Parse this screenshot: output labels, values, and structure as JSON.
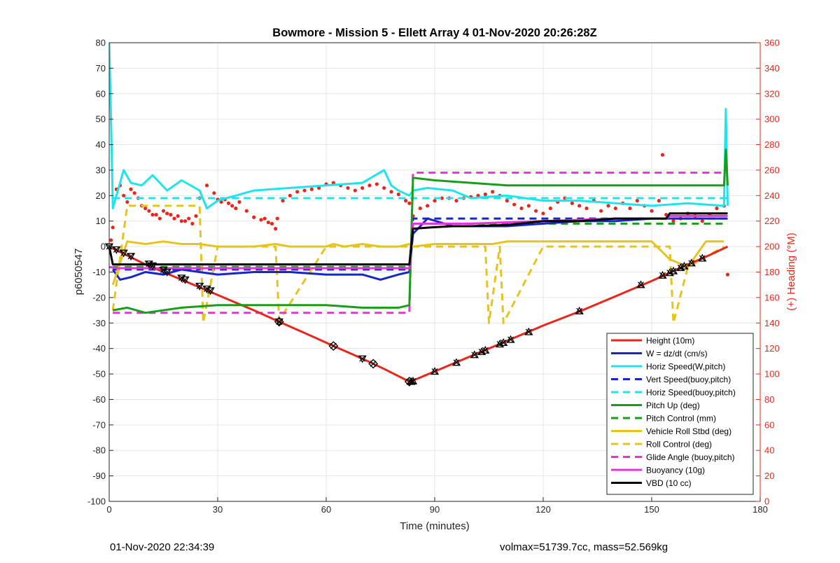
{
  "chart_data": {
    "type": "line",
    "title": "Bowmore - Mission 5 - Ellett Array 4 01-Nov-2020 20:26:28Z",
    "xlabel": "Time (minutes)",
    "ylabel": "p6050547",
    "y2label": "(+) Heading (°M)",
    "xlim": [
      0,
      180
    ],
    "ylim": [
      -100,
      80
    ],
    "y2lim": [
      0,
      360
    ],
    "xticks": [
      0,
      30,
      60,
      90,
      120,
      150,
      180
    ],
    "yticks": [
      80,
      70,
      60,
      50,
      40,
      30,
      20,
      10,
      0,
      -10,
      -20,
      -30,
      -40,
      -50,
      -60,
      -70,
      -80,
      -90,
      -100
    ],
    "y2ticks": [
      360,
      340,
      320,
      300,
      280,
      260,
      240,
      220,
      200,
      180,
      160,
      140,
      120,
      100,
      80,
      60,
      40,
      20,
      0
    ],
    "grid": true,
    "legend_position": "bottom-right",
    "series": [
      {
        "name": "Height (10m)",
        "color": "#e8261c",
        "style": "solid",
        "x": [
          0,
          10,
          20,
          30,
          40,
          47,
          55,
          62,
          70,
          76,
          83,
          85,
          90,
          100,
          110,
          120,
          130,
          140,
          150,
          160,
          165,
          171
        ],
        "y": [
          0,
          -7,
          -13,
          -19,
          -25,
          -29.5,
          -34.5,
          -39,
          -44,
          -48,
          -53,
          -52,
          -49,
          -43,
          -37,
          -31,
          -25.5,
          -19.5,
          -13.5,
          -7,
          -4,
          0
        ]
      },
      {
        "name": "W = dz/dt (cm/s)",
        "color": "#1726c8",
        "style": "solid",
        "x": [
          1,
          3,
          6,
          10,
          15,
          20,
          30,
          40,
          50,
          60,
          70,
          75,
          80,
          83,
          84,
          88,
          95,
          100,
          110,
          120,
          130,
          140,
          150,
          160,
          171
        ],
        "y": [
          -9,
          -13,
          -12,
          -10,
          -11,
          -9,
          -11,
          -10,
          -10,
          -11,
          -11,
          -13,
          -11,
          -10,
          5,
          11,
          8,
          8,
          8,
          9,
          10,
          10,
          11,
          11,
          11
        ]
      },
      {
        "name": "Horiz Speed(W,pitch)",
        "color": "#1ee4ec",
        "style": "solid",
        "x": [
          0,
          0.5,
          1,
          2,
          4,
          6,
          9,
          12,
          16,
          20,
          25,
          27,
          30,
          40,
          50,
          60,
          70,
          76,
          78,
          80,
          83,
          84,
          88,
          95,
          100,
          110,
          120,
          130,
          140,
          150,
          160,
          170,
          170.5,
          171
        ],
        "y": [
          80,
          50,
          15,
          20,
          30,
          25,
          24,
          28,
          22,
          26,
          22,
          15,
          18,
          22,
          23,
          24,
          25,
          30,
          24,
          22,
          20,
          22,
          23,
          22,
          19,
          20,
          18,
          18,
          17,
          16,
          17,
          16,
          54,
          16
        ]
      },
      {
        "name": "Vert Speed(buoy,pitch)",
        "color": "#1726c8",
        "style": "dash",
        "x": [
          1,
          83,
          84,
          171
        ],
        "y": [
          -9,
          -9,
          11,
          11
        ]
      },
      {
        "name": "Horiz Speed(buoy,pitch)",
        "color": "#1ee4ec",
        "style": "dash",
        "x": [
          1,
          83,
          84,
          171
        ],
        "y": [
          19,
          19,
          19,
          19
        ]
      },
      {
        "name": "Pitch Up (deg)",
        "color": "#1a9e1a",
        "style": "solid",
        "x": [
          1,
          5,
          10,
          20,
          30,
          40,
          50,
          60,
          70,
          80,
          83,
          84,
          90,
          100,
          110,
          120,
          130,
          140,
          150,
          160,
          170,
          170.5,
          171
        ],
        "y": [
          -25,
          -24,
          -26,
          -24,
          -23,
          -23,
          -23,
          -23,
          -24,
          -24,
          -23,
          27,
          26,
          25,
          24,
          24,
          24,
          24,
          24,
          24,
          24,
          38,
          24
        ]
      },
      {
        "name": "Pitch Control (mm)",
        "color": "#1a9e1a",
        "style": "dash",
        "x": [
          1,
          83,
          84,
          171
        ],
        "y": [
          -8,
          -8,
          9,
          9
        ]
      },
      {
        "name": "Vehicle Roll Stbd (deg)",
        "color": "#e6c41e",
        "style": "solid",
        "x": [
          1,
          5,
          10,
          15,
          20,
          25,
          30,
          40,
          46,
          50,
          60,
          62,
          65,
          70,
          75,
          80,
          83,
          84,
          90,
          100,
          106,
          110,
          120,
          130,
          140,
          150,
          155,
          160,
          165,
          170
        ],
        "y": [
          -15,
          2,
          1,
          2,
          1,
          1,
          0,
          0,
          1,
          0,
          0,
          1,
          0,
          1,
          0,
          0,
          1,
          0,
          1,
          1,
          1,
          2,
          2,
          2,
          2,
          2,
          -5,
          -8,
          2,
          2
        ]
      },
      {
        "name": "Roll Control (deg)",
        "color": "#e6c41e",
        "style": "dash",
        "x": [
          1,
          5,
          10,
          20,
          25,
          26,
          30,
          46,
          47,
          60,
          83,
          84,
          100,
          104,
          105,
          108,
          109,
          120,
          150,
          155,
          156,
          160,
          170
        ],
        "y": [
          -25,
          16,
          16,
          16,
          16,
          -30,
          0,
          0,
          -29,
          0,
          0,
          0,
          0,
          0,
          -30,
          0,
          -30,
          0,
          0,
          0,
          -30,
          -8,
          0
        ]
      },
      {
        "name": "Glide Angle (buoy,pitch)",
        "color": "#ea2ee0",
        "style": "dash",
        "x": [
          1,
          83,
          84,
          171
        ],
        "y": [
          -26,
          -26,
          29,
          29
        ]
      },
      {
        "name": "Buoyancy (10g)",
        "color": "#ea2ee0",
        "style": "solid",
        "x": [
          0,
          2,
          10,
          20,
          40,
          60,
          80,
          83,
          84,
          100,
          120,
          140,
          154,
          155,
          171
        ],
        "y": [
          -8,
          -8.5,
          -8.5,
          -8.5,
          -8.5,
          -8.5,
          -8.5,
          -8.5,
          9,
          9,
          10,
          11,
          11,
          12,
          12
        ]
      },
      {
        "name": "VBD (10 cc)",
        "color": "#000000",
        "style": "solid",
        "x": [
          0,
          1,
          83,
          84,
          89,
          95,
          100,
          110,
          120,
          130,
          140,
          154,
          155,
          171
        ],
        "y": [
          0,
          -7,
          -7,
          7,
          7.5,
          8,
          8,
          8.5,
          10,
          10,
          11,
          11,
          13,
          13
        ]
      }
    ],
    "heading_points": {
      "color": "#e8261c",
      "axis": "right",
      "x": [
        0.5,
        1,
        2,
        3,
        4,
        5,
        6,
        7,
        8,
        9,
        10,
        11,
        12,
        13,
        14,
        15,
        16,
        17,
        18,
        19,
        20,
        21,
        22,
        23,
        24,
        25,
        27,
        29,
        30,
        31,
        32,
        33,
        34,
        35,
        36,
        38,
        40,
        42,
        43,
        44,
        45,
        46,
        46.5,
        48,
        50,
        52,
        54,
        56,
        58,
        60,
        62,
        64,
        66,
        68,
        70,
        72,
        74,
        76,
        78,
        80,
        82,
        83,
        84,
        86,
        88,
        90,
        92,
        94,
        96,
        98,
        100,
        102,
        104,
        106,
        108,
        110,
        112,
        114,
        116,
        118,
        120,
        122,
        124,
        126,
        128,
        130,
        132,
        134,
        136,
        138,
        140,
        142,
        144,
        146,
        148,
        150,
        152,
        153,
        154,
        156,
        158,
        160,
        162,
        164,
        166,
        168,
        170,
        171
      ],
      "y": [
        205,
        215,
        245,
        248,
        240,
        235,
        245,
        242,
        238,
        232,
        230,
        228,
        225,
        225,
        222,
        228,
        226,
        225,
        222,
        224,
        220,
        220,
        222,
        218,
        224,
        238,
        248,
        242,
        237,
        235,
        237,
        234,
        232,
        230,
        235,
        228,
        223,
        221,
        222,
        219,
        218,
        214,
        222,
        236,
        240,
        243,
        244,
        245,
        246,
        249,
        250,
        248,
        246,
        244,
        246,
        248,
        249,
        246,
        243,
        241,
        236,
        234,
        224,
        230,
        232,
        236,
        238,
        238,
        236,
        238,
        239,
        240,
        241,
        243,
        240,
        236,
        233,
        230,
        232,
        228,
        226,
        230,
        235,
        238,
        234,
        232,
        230,
        236,
        228,
        232,
        230,
        234,
        230,
        236,
        232,
        228,
        236,
        272,
        225,
        220,
        222,
        226,
        224,
        220,
        225,
        230,
        232,
        178
      ]
    },
    "markers_down": {
      "x": [
        0,
        2,
        4,
        6,
        11,
        12,
        15,
        16,
        20,
        21,
        25,
        27,
        28,
        47,
        70
      ],
      "y": [
        0,
        -1.2,
        -2.5,
        -3.8,
        -6.8,
        -7.5,
        -9.2,
        -10,
        -12.3,
        -13,
        -15.5,
        -16.6,
        -17.3,
        -29.5,
        -44
      ]
    },
    "markers_diamond": {
      "x": [
        47,
        62,
        73,
        83
      ],
      "y": [
        -29.5,
        -39,
        -46,
        -53
      ]
    },
    "markers_up": {
      "x": [
        83.5,
        84,
        90,
        96,
        101,
        103,
        104,
        108,
        109,
        111,
        116,
        130,
        147,
        153,
        155,
        156,
        158,
        159,
        161,
        164
      ],
      "y": [
        -53,
        -52.8,
        -49,
        -45.5,
        -42.5,
        -41.3,
        -40.7,
        -38.3,
        -37.7,
        -36.5,
        -33.5,
        -25.3,
        -15,
        -11.3,
        -10.3,
        -9.6,
        -8.3,
        -7.7,
        -6.5,
        -4.6
      ]
    }
  },
  "footer": {
    "left": "01-Nov-2020 22:34:39",
    "right": "volmax=51739.7cc, mass=52.569kg"
  }
}
